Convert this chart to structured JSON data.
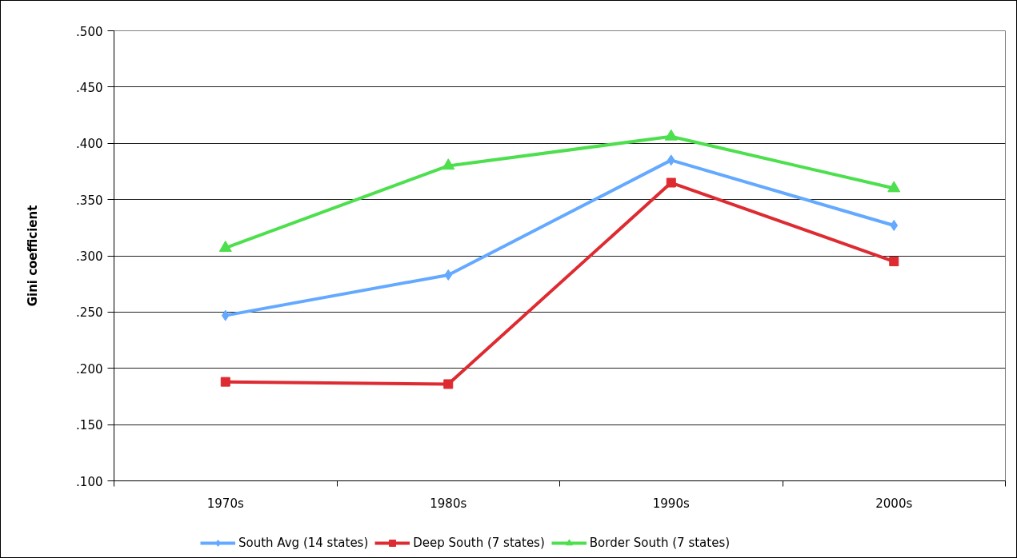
{
  "chart_data": {
    "type": "line",
    "ylabel": "Gini coefficient",
    "categories": [
      "1970s",
      "1980s",
      "1990s",
      "2000s"
    ],
    "series": [
      {
        "name": "South Avg (14 states)",
        "color": "#63a9ff",
        "marker": "diamond",
        "values": [
          0.247,
          0.283,
          0.385,
          0.327
        ]
      },
      {
        "name": "Deep South (7 states)",
        "color": "#dd2b31",
        "marker": "square",
        "values": [
          0.188,
          0.186,
          0.365,
          0.295
        ]
      },
      {
        "name": "Border South (7 states)",
        "color": "#4ddf4d",
        "marker": "triangle",
        "values": [
          0.307,
          0.38,
          0.406,
          0.36
        ]
      }
    ],
    "ylim": [
      0.1,
      0.5
    ],
    "yticks": [
      {
        "value": 0.1,
        "label": ".100"
      },
      {
        "value": 0.15,
        "label": ".150"
      },
      {
        "value": 0.2,
        "label": ".200"
      },
      {
        "value": 0.25,
        "label": ".250"
      },
      {
        "value": 0.3,
        "label": ".300"
      },
      {
        "value": 0.35,
        "label": ".350"
      },
      {
        "value": 0.4,
        "label": ".400"
      },
      {
        "value": 0.45,
        "label": ".450"
      },
      {
        "value": 0.5,
        "label": ".500"
      }
    ],
    "grid": "y",
    "legend": "bottom",
    "line_style": "solid"
  }
}
